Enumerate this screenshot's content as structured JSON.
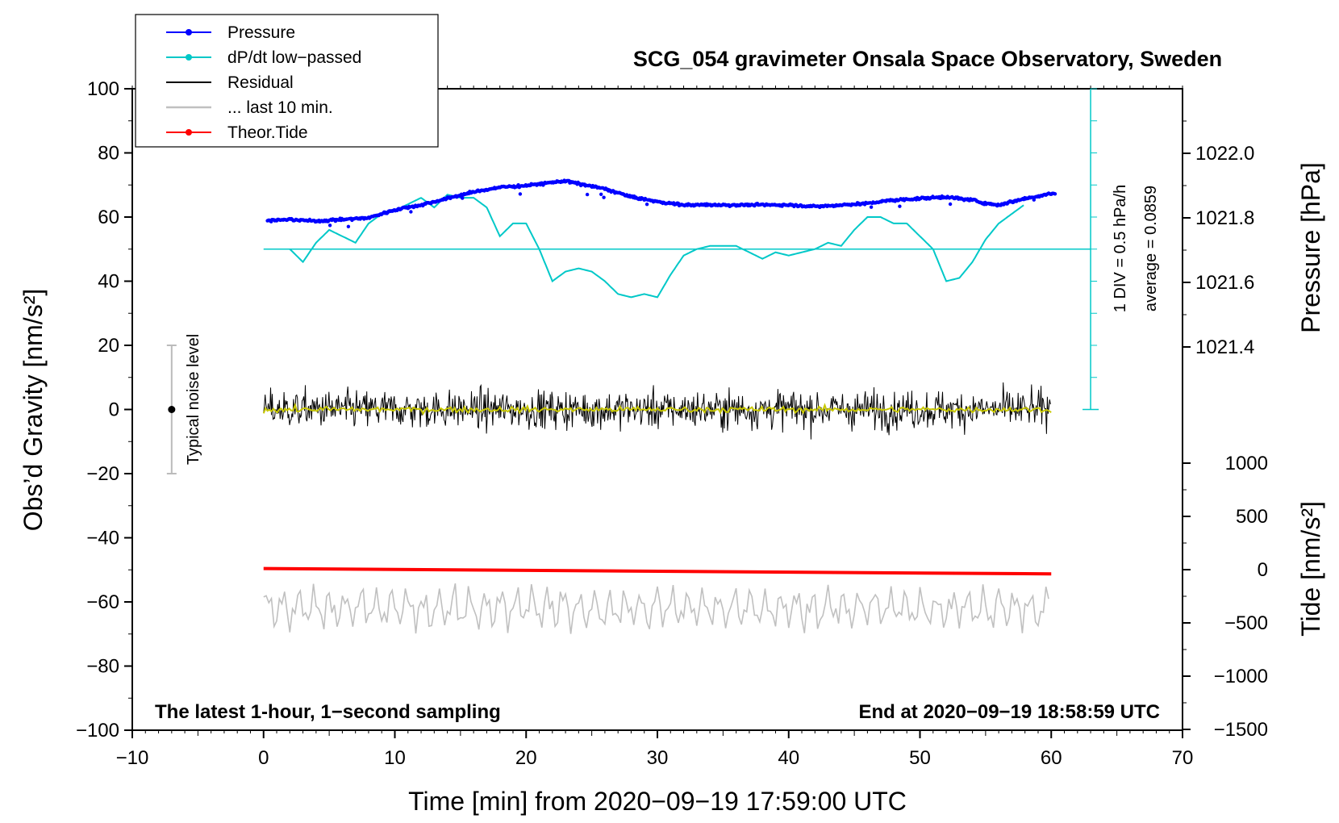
{
  "chart_data": {
    "type": "line",
    "title": "SCG_054 gravimeter Onsala Space Observatory, Sweden",
    "xlabel": "Time [min] from 2020−09−19 17:59:00 UTC",
    "ylabel_left": "Obs’d Gravity [nm/s²]",
    "ylabel_pressure": "Pressure [hPa]",
    "ylabel_tide": "Tide [nm/s²]",
    "xlim": [
      -10,
      70
    ],
    "ylim_left": [
      -100,
      100
    ],
    "x_ticks": [
      "−10",
      "0",
      "10",
      "20",
      "30",
      "40",
      "50",
      "60",
      "70"
    ],
    "y_ticks_left": [
      "100",
      "80",
      "60",
      "40",
      "20",
      "0",
      "−20",
      "−40",
      "−60",
      "−80",
      "−100"
    ],
    "pressure_ticks": [
      "1022.0",
      "1021.8",
      "1021.6",
      "1021.4"
    ],
    "pressure_range": [
      1021.2,
      1022.2
    ],
    "tide_ticks": [
      "1000",
      "500",
      "0",
      "−500",
      "−1000",
      "−1500"
    ],
    "tide_range": [
      -1500,
      1500
    ],
    "bottom_left_note": "The latest 1-hour, 1−second sampling",
    "bottom_right_note": "End at 2020−09−19 18:58:59 UTC",
    "noise_label": "Typical noise level",
    "noise_bar": {
      "x": -7,
      "center": 0,
      "half_range": 20
    },
    "dpdt_scale_label": "1 DIV = 0.5 hPa/h",
    "dpdt_average_label": "average = 0.0859",
    "dpdt_axis": {
      "x": 63,
      "y_from": 0,
      "y_to": 100,
      "baseline": 50
    },
    "legend": [
      {
        "label": "Pressure",
        "color": "#0000ff",
        "marker": true
      },
      {
        "label": "dP/dt low−passed",
        "color": "#00c8c8",
        "marker": true
      },
      {
        "label": "Residual",
        "color": "#000000",
        "marker": false
      },
      {
        "label": "... last 10 min.",
        "color": "#c0c0c0",
        "marker": false
      },
      {
        "label": "Theor.Tide",
        "color": "#ff0000",
        "marker": true
      }
    ],
    "series": [
      {
        "name": "Pressure",
        "axis": "pressure_hPa",
        "color": "#0000ff",
        "x": [
          0,
          2,
          4,
          6,
          8,
          10,
          12,
          14,
          16,
          18,
          20,
          22,
          23,
          24,
          26,
          28,
          30,
          32,
          34,
          36,
          38,
          40,
          42,
          44,
          46,
          48,
          50,
          52,
          54,
          55,
          56,
          58,
          60
        ],
        "values": [
          1021.79,
          1021.795,
          1021.79,
          1021.795,
          1021.8,
          1021.825,
          1021.84,
          1021.86,
          1021.88,
          1021.895,
          1021.9,
          1021.91,
          1021.915,
          1021.905,
          1021.89,
          1021.865,
          1021.85,
          1021.84,
          1021.84,
          1021.84,
          1021.84,
          1021.84,
          1021.835,
          1021.84,
          1021.845,
          1021.855,
          1021.86,
          1021.865,
          1021.855,
          1021.845,
          1021.84,
          1021.86,
          1021.875
        ]
      },
      {
        "name": "dP/dt low−passed",
        "axis": "left",
        "color": "#00c8c8",
        "x": [
          2,
          3,
          4,
          5,
          6,
          7,
          8,
          9,
          10,
          11,
          12,
          13,
          14,
          15,
          16,
          17,
          18,
          19,
          20,
          21,
          22,
          23,
          24,
          25,
          26,
          27,
          28,
          29,
          30,
          31,
          32,
          33,
          34,
          35,
          36,
          37,
          38,
          39,
          40,
          41,
          42,
          43,
          44,
          45,
          46,
          47,
          48,
          49,
          50,
          51,
          52,
          53,
          54,
          55,
          56,
          57,
          58
        ],
        "values": [
          50,
          46,
          52,
          56,
          54,
          52,
          58,
          61,
          62,
          64,
          66,
          63,
          67,
          66,
          66,
          63,
          54,
          58,
          58,
          50,
          40,
          43,
          44,
          43,
          40,
          36,
          35,
          36,
          35,
          42,
          48,
          50,
          51,
          51,
          51,
          49,
          47,
          49,
          48,
          49,
          50,
          52,
          51,
          56,
          60,
          60,
          58,
          58,
          54,
          50,
          40,
          41,
          46,
          53,
          58,
          61,
          64
        ]
      },
      {
        "name": "Residual",
        "axis": "left",
        "color": "#000000",
        "x_range": [
          0,
          60
        ],
        "amplitude": 8,
        "mean": 0
      },
      {
        "name": "Residual smoothed",
        "axis": "left",
        "color": "#c8c800",
        "x_range": [
          0,
          60
        ],
        "amplitude": 1.5,
        "mean": 0
      },
      {
        "name": "Theor.Tide",
        "axis": "tide_nm_s2",
        "color": "#ff0000",
        "x": [
          0,
          60
        ],
        "values": [
          10,
          -40
        ]
      },
      {
        "name": "... last 10 min.",
        "axis": "left",
        "color": "#c0c0c0",
        "x_range": [
          0,
          60
        ],
        "center": -62,
        "amplitude": 7
      }
    ]
  }
}
